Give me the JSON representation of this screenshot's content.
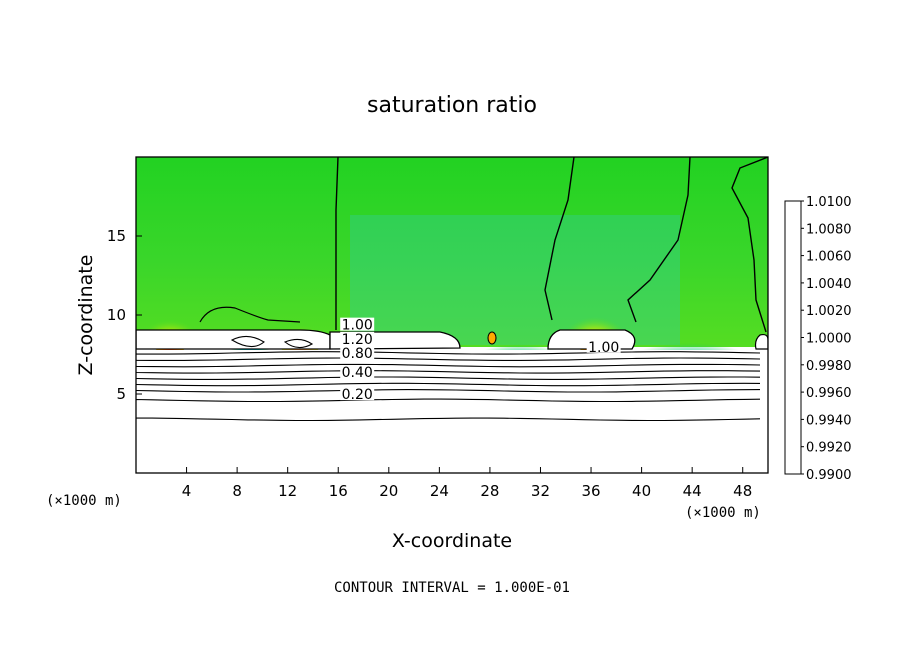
{
  "chart_data": {
    "type": "heatmap",
    "title": "saturation ratio",
    "xlabel": "X-coordinate",
    "ylabel": "Z-coordinate",
    "x_unit": "(×1000 m)",
    "x_unit_right": "(×1000 m)",
    "xlim": [
      0,
      50
    ],
    "ylim": [
      0,
      20
    ],
    "x_ticks": [
      4,
      8,
      12,
      16,
      20,
      24,
      28,
      32,
      36,
      40,
      44,
      48
    ],
    "y_ticks": [
      5,
      10,
      15
    ],
    "colorbar": {
      "labels": [
        "1.0100",
        "1.0080",
        "1.0060",
        "1.0040",
        "1.0020",
        "1.0000",
        "0.9980",
        "0.9960",
        "0.9940",
        "0.9920",
        "0.9900"
      ],
      "colors": [
        "#ff6666",
        "#ff2222",
        "#ff7700",
        "#ffcc00",
        "#aadd00",
        "#22cc22",
        "#00cc88",
        "#00bbdd",
        "#0077ff",
        "#0022dd",
        "#550099"
      ]
    },
    "contour_labels": [
      {
        "text": "1.00",
        "x": 17.5,
        "y": 9.2
      },
      {
        "text": "1.20",
        "x": 17.5,
        "y": 8.3
      },
      {
        "text": "0.80",
        "x": 17.5,
        "y": 7.4
      },
      {
        "text": "0.40",
        "x": 17.5,
        "y": 6.2
      },
      {
        "text": "0.20",
        "x": 17.5,
        "y": 4.8
      },
      {
        "text": "1.00",
        "x": 37.0,
        "y": 7.8
      }
    ],
    "contour_levels_below": [
      3.4,
      4.6,
      5.2,
      5.6,
      6.0,
      6.4,
      6.8,
      7.2,
      7.6
    ],
    "contour_interval": "CONTOUR INTERVAL = 1.000E-01"
  }
}
